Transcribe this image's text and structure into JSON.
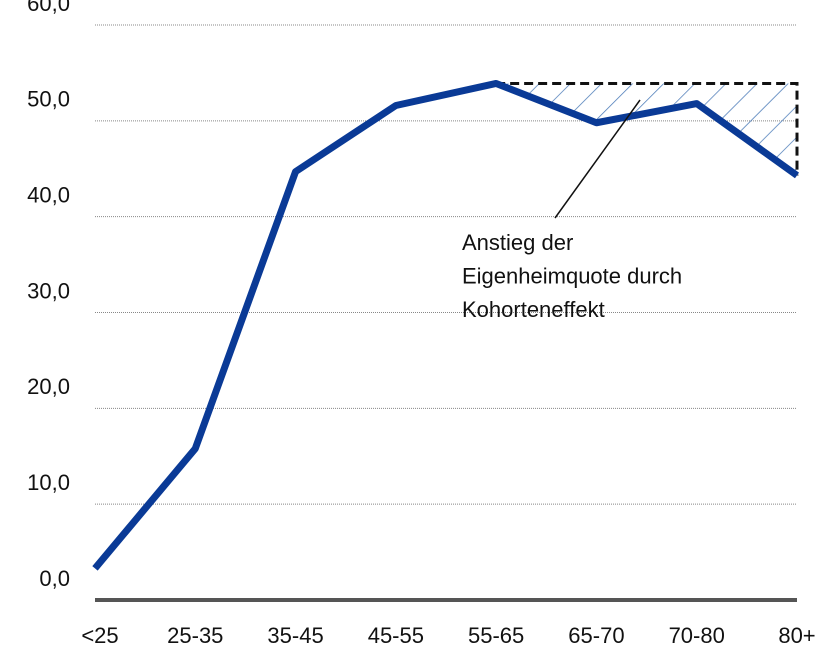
{
  "chart_data": {
    "type": "line",
    "categories": [
      "<25",
      "25-35",
      "35-45",
      "45-55",
      "55-65",
      "65-70",
      "70-80",
      "80+"
    ],
    "series": [
      {
        "color": "#0a3a96",
        "values": [
          3.3,
          15.8,
          44.7,
          51.6,
          53.9,
          49.8,
          51.8,
          44.3
        ]
      }
    ],
    "ylim": [
      0,
      60
    ],
    "yticks": [
      {
        "value": 0,
        "label": "0,0"
      },
      {
        "value": 10,
        "label": "10,0"
      },
      {
        "value": 20,
        "label": "20,0"
      },
      {
        "value": 30,
        "label": "30,0"
      },
      {
        "value": 40,
        "label": "40,0"
      },
      {
        "value": 50,
        "label": "50,0"
      },
      {
        "value": 60,
        "label": "60,0"
      }
    ],
    "grid": true,
    "annotation": [
      "Anstieg der",
      "Eigenheimquote durch",
      "Kohorteneffekt"
    ]
  }
}
